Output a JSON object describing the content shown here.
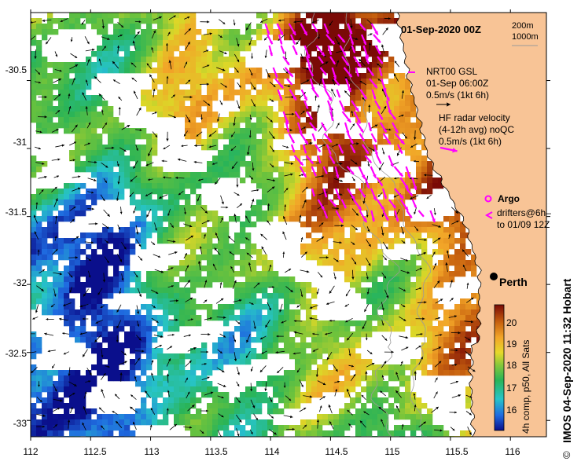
{
  "map": {
    "title": "01-Sep-2020 00Z",
    "legend_depth": [
      "200m",
      "1000m"
    ],
    "gsl_block": [
      "NRT00 GSL",
      "01-Sep 06:00Z",
      "0.5m/s (1kt 6h)"
    ],
    "radar_block": [
      "HF radar velocity",
      "(4-12h avg) noQC",
      "0.5m/s (1kt 6h)"
    ],
    "argo_label": "Argo",
    "drifters_block": [
      "drifters@6h–",
      "to 01/09 12Z"
    ],
    "city_label": "Perth",
    "credit": "IMOS 04-Sep-2020 11:32 Hobart",
    "colorbar_label": "4h comp, p50, All Sats",
    "colorbar_ticks": [
      "16",
      "17",
      "18",
      "19",
      "20"
    ],
    "x_ticks": [
      "112",
      "112.5",
      "113",
      "113.5",
      "114",
      "114.5",
      "115",
      "115.5",
      "116"
    ],
    "y_ticks": [
      "-30.5",
      "-31",
      "-31.5",
      "-32",
      "-32.5",
      "-33"
    ],
    "colors": {
      "land": "#f8c496",
      "vector": "#000000",
      "radar_vector": "#ff00ff"
    },
    "lon_range": [
      112,
      116.3
    ],
    "lat_range": [
      -33.12,
      -30.0
    ]
  }
}
